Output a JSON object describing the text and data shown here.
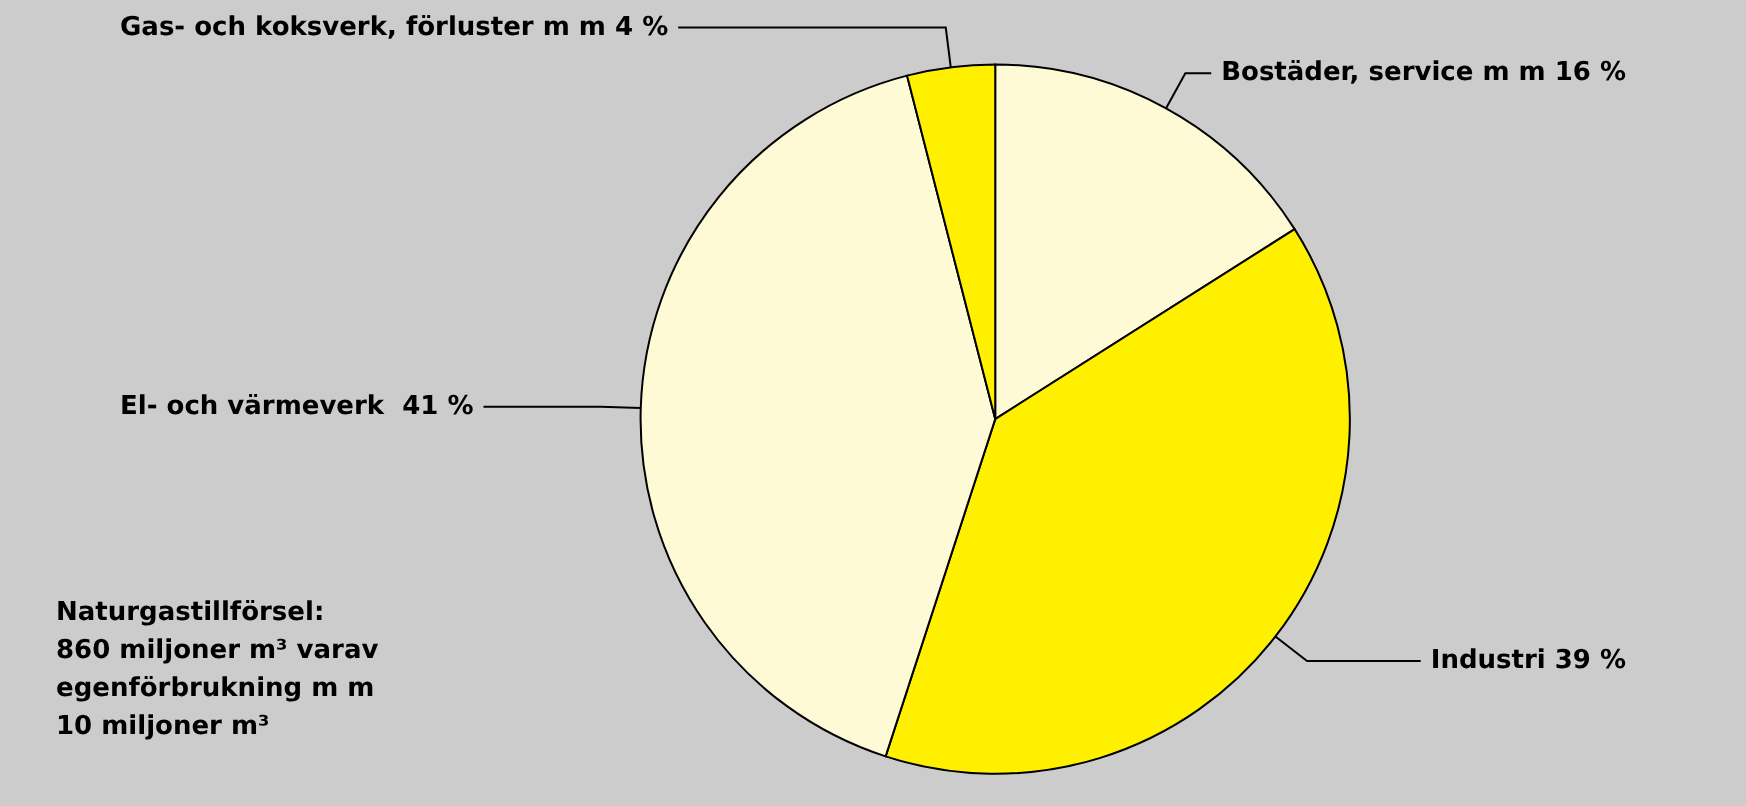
{
  "chart_data": {
    "type": "pie",
    "categories": [
      "Bostäder, service m m",
      "Industri",
      "El- och värmeverk ",
      "Gas- och koksverk, förluster m m"
    ],
    "values": [
      16,
      39,
      41,
      4
    ],
    "colors": [
      "#fffad6",
      "#fff000",
      "#fffad6",
      "#fff000"
    ],
    "value_labels": [
      "16 %",
      "39 %",
      "41 %",
      "4 %"
    ],
    "annotations": [
      "Naturgastillförsel:\n860 miljoner m³ varav\negenförbrukning m m\n10 miljoner m³"
    ]
  }
}
